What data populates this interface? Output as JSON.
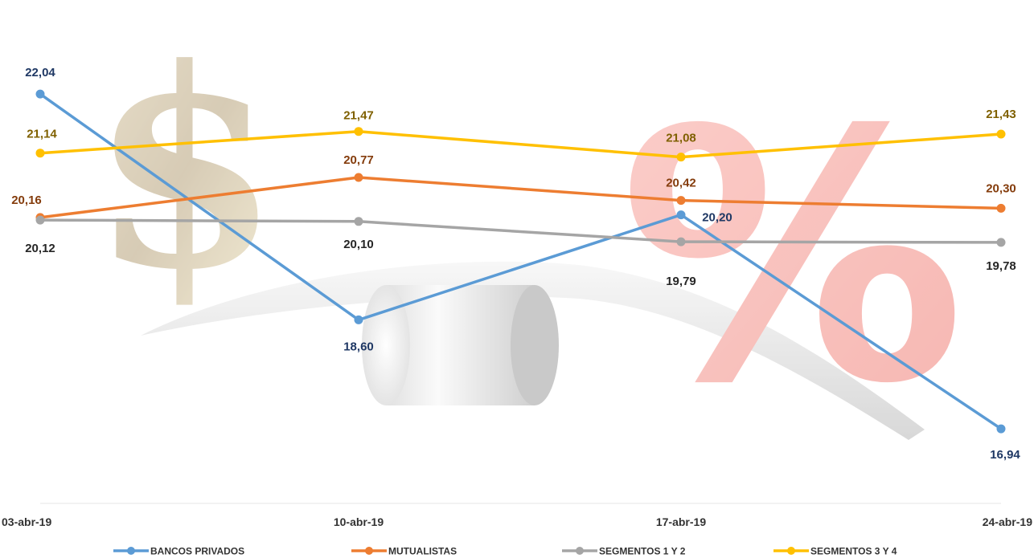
{
  "chart_data": {
    "type": "line",
    "title": "",
    "xlabel": "",
    "ylabel": "",
    "categories": [
      "03-abr-19",
      "10-abr-19",
      "17-abr-19",
      "24-abr-19"
    ],
    "ylim": [
      16.0,
      22.8
    ],
    "grid": false,
    "legend_position": "bottom",
    "series": [
      {
        "name": "BANCOS PRIVADOS",
        "color": "#5B9BD5",
        "label_color": "#1F3864",
        "values": [
          22.04,
          18.6,
          20.2,
          16.94
        ],
        "labels": [
          "22,04",
          "18,60",
          "20,20",
          "16,94"
        ]
      },
      {
        "name": "MUTUALISTAS",
        "color": "#ED7D31",
        "label_color": "#843C0C",
        "values": [
          20.16,
          20.77,
          20.42,
          20.3
        ],
        "labels": [
          "20,16",
          "20,77",
          "20,42",
          "20,30"
        ]
      },
      {
        "name": "SEGMENTOS 1 Y 2",
        "color": "#A5A5A5",
        "label_color": "#262626",
        "values": [
          20.12,
          20.1,
          19.79,
          19.78
        ],
        "labels": [
          "20,12",
          "20,10",
          "19,79",
          "19,78"
        ]
      },
      {
        "name": "SEGMENTOS 3 Y 4",
        "color": "#FFC000",
        "label_color": "#7F6000",
        "values": [
          21.14,
          21.47,
          21.08,
          21.43
        ],
        "labels": [
          "21,14",
          "21,47",
          "21,08",
          "21,43"
        ]
      }
    ]
  },
  "background": {
    "dollar_glyph": "$",
    "percent_glyph": "%",
    "illustration": "seesaw-dollar-vs-percent"
  }
}
